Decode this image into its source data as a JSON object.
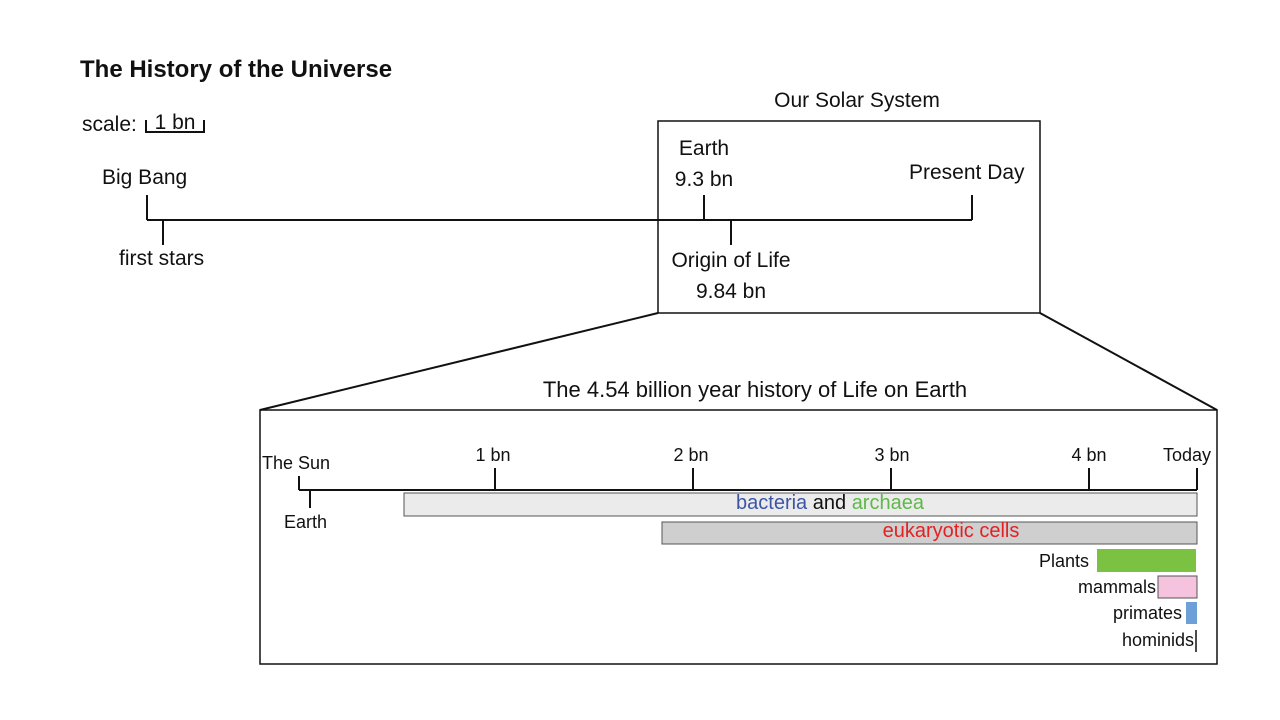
{
  "title": "The History of the Universe",
  "scale": {
    "label": "scale:",
    "value": "1 bn"
  },
  "universe_timeline": {
    "start_label": "Big Bang",
    "first_stars_label": "first stars",
    "earth_label": "Earth",
    "earth_value": "9.3 bn",
    "origin_label": "Origin of Life",
    "origin_value": "9.84 bn",
    "present_label": "Present Day"
  },
  "solar_system_box": {
    "label": "Our Solar System"
  },
  "life_panel": {
    "title": "The 4.54 billion year history of Life on Earth",
    "sun_label": "The Sun",
    "earth_label": "Earth",
    "ticks": [
      "1 bn",
      "2 bn",
      "3 bn",
      "4 bn",
      "Today"
    ],
    "bars": {
      "bacteria_word": "bacteria",
      "and_word": "and",
      "archaea_word": "archaea",
      "eukaryotic_label": "eukaryotic cells",
      "plants_label": "Plants",
      "mammals_label": "mammals",
      "primates_label": "primates",
      "hominids_label": "hominids"
    }
  },
  "colors": {
    "line": "#111111",
    "bacteria": "#3d55a6",
    "archaea": "#5fb84a",
    "eukaryotic": "#e32124",
    "bar_light": "#ebebeb",
    "bar_dark": "#cfcfcf",
    "plants": "#7cc242",
    "mammals": "#f5c3de",
    "primates": "#6f9fd8"
  }
}
